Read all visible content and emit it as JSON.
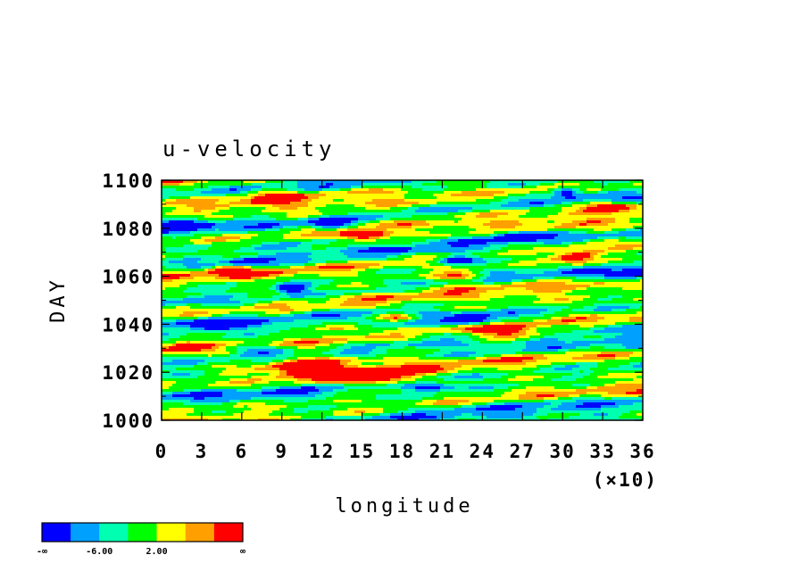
{
  "chart_data": {
    "type": "heatmap",
    "title": "u-velocity",
    "xlabel": "longitude",
    "ylabel": "DAY",
    "x_multiplier_label": "(×10)",
    "xlim": [
      0,
      36
    ],
    "ylim": [
      1000,
      1100
    ],
    "x_ticks": [
      "0",
      "3",
      "6",
      "9",
      "12",
      "15",
      "18",
      "21",
      "24",
      "27",
      "30",
      "33",
      "36"
    ],
    "y_ticks": [
      "1000",
      "1020",
      "1040",
      "1060",
      "1080",
      "1100"
    ],
    "colorbar": {
      "colors": [
        "#0000ff",
        "#00a0ff",
        "#00ffb0",
        "#00ff00",
        "#ffff00",
        "#ffa000",
        "#ff0000"
      ],
      "labels": [
        "-∞",
        "-6.00",
        "2.00",
        "∞"
      ]
    },
    "field_description": "banded eastward-tilted streaks of alternating u-velocity; strong positive patches near (longitude 130-170, day 1010-1025), (155-175, day 1075-1085), (260-330, day 1060-1070), (310-360, day 1000-1010); strong negative bands near day 1020, 1045, 1060, 1095"
  }
}
